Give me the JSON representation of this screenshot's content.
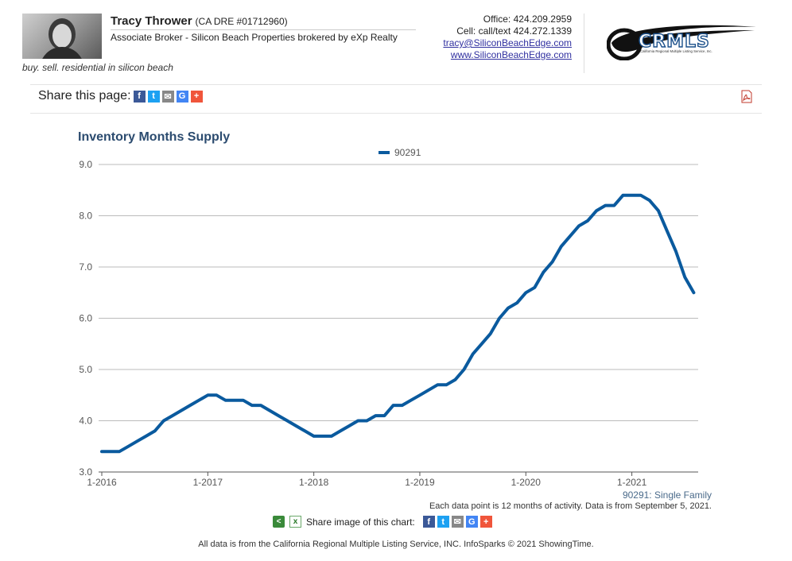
{
  "agent": {
    "name": "Tracy Thrower",
    "license": "(CA DRE #01712960)",
    "title": "Associate Broker - Silicon Beach Properties brokered by eXp Realty",
    "tagline": "buy. sell. residential in silicon beach",
    "office": "Office: 424.209.2959",
    "cell": "Cell: call/text 424.272.1339",
    "email": "tracy@SiliconBeachEdge.com",
    "website": "www.SiliconBeachEdge.com"
  },
  "logo": {
    "text": "CRMLS",
    "subtext": "California Regional Multiple Listing Service, Inc."
  },
  "share": {
    "label": "Share this page:",
    "icons": [
      "facebook-icon",
      "twitter-icon",
      "email-icon",
      "google-icon",
      "plus-icon"
    ]
  },
  "chart_data": {
    "type": "line",
    "title": "Inventory Months Supply",
    "series": [
      {
        "name": "90291",
        "color": "#0a5a9e",
        "x": [
          "2016-01",
          "2016-02",
          "2016-03",
          "2016-04",
          "2016-05",
          "2016-06",
          "2016-07",
          "2016-08",
          "2016-09",
          "2016-10",
          "2016-11",
          "2016-12",
          "2017-01",
          "2017-02",
          "2017-03",
          "2017-04",
          "2017-05",
          "2017-06",
          "2017-07",
          "2017-08",
          "2017-09",
          "2017-10",
          "2017-11",
          "2017-12",
          "2018-01",
          "2018-02",
          "2018-03",
          "2018-04",
          "2018-05",
          "2018-06",
          "2018-07",
          "2018-08",
          "2018-09",
          "2018-10",
          "2018-11",
          "2018-12",
          "2019-01",
          "2019-02",
          "2019-03",
          "2019-04",
          "2019-05",
          "2019-06",
          "2019-07",
          "2019-08",
          "2019-09",
          "2019-10",
          "2019-11",
          "2019-12",
          "2020-01",
          "2020-02",
          "2020-03",
          "2020-04",
          "2020-05",
          "2020-06",
          "2020-07",
          "2020-08",
          "2020-09",
          "2020-10",
          "2020-11",
          "2020-12",
          "2021-01",
          "2021-02",
          "2021-03",
          "2021-04",
          "2021-05",
          "2021-06",
          "2021-07",
          "2021-08"
        ],
        "values": [
          3.4,
          3.4,
          3.4,
          3.5,
          3.6,
          3.7,
          3.8,
          4.0,
          4.1,
          4.2,
          4.3,
          4.4,
          4.5,
          4.5,
          4.4,
          4.4,
          4.4,
          4.3,
          4.3,
          4.2,
          4.1,
          4.0,
          3.9,
          3.8,
          3.7,
          3.7,
          3.7,
          3.8,
          3.9,
          4.0,
          4.0,
          4.1,
          4.1,
          4.3,
          4.3,
          4.4,
          4.5,
          4.6,
          4.7,
          4.7,
          4.8,
          5.0,
          5.3,
          5.5,
          5.7,
          6.0,
          6.2,
          6.3,
          6.5,
          6.6,
          6.9,
          7.1,
          7.4,
          7.6,
          7.8,
          7.9,
          8.1,
          8.2,
          8.2,
          8.4,
          8.4,
          8.4,
          8.3,
          8.1,
          7.7,
          7.3,
          6.8,
          6.5
        ]
      }
    ],
    "ylim": [
      3.0,
      9.0
    ],
    "yticks": [
      "3.0",
      "4.0",
      "5.0",
      "6.0",
      "7.0",
      "8.0",
      "9.0"
    ],
    "xticks": [
      "1-2016",
      "1-2017",
      "1-2018",
      "1-2019",
      "1-2020",
      "1-2021"
    ],
    "legend_position": "top-center",
    "grid": true,
    "subtitle": "90291: Single Family",
    "note": "Each data point is 12 months of activity. Data is from September 5, 2021."
  },
  "share_image": {
    "label": "Share image of this chart:"
  },
  "footer": {
    "copyright": "All data is from the California Regional Multiple Listing Service, INC. InfoSparks © 2021 ShowingTime."
  }
}
